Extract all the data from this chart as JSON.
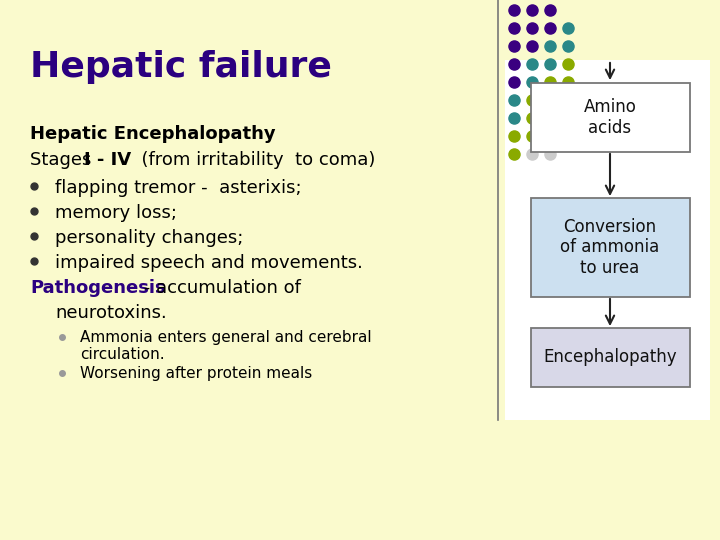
{
  "title": "Hepatic failure",
  "title_color": "#2b0080",
  "title_fontsize": 26,
  "background_color": "#fafacd",
  "text_color": "#000000",
  "subheading": "Hepatic Encephalopathy",
  "bullets": [
    "flapping tremor -  asterixis;",
    "memory loss;",
    "personality changes;",
    "impaired speech and movements."
  ],
  "pathogenesis_label": "Pathogenesis",
  "pathogenesis_rest": " - accumulation of",
  "neurotoxins_line": "neurotoxins.",
  "sub_bullets": [
    "Ammonia enters general and cerebral\ncirculation.",
    "Worsening after protein meals"
  ],
  "diagram_boxes": [
    "Amino\nacids",
    "Conversion\nof ammonia\nto urea",
    "Encephalopathy"
  ],
  "box_fill_amino": "#ffffff",
  "box_fill_conversion": "#cce0f0",
  "box_fill_enceph": "#d8d8e8",
  "box_edge_color": "#777777",
  "arrow_color": "#222222",
  "pathogenesis_color": "#2b0080",
  "line_color": "#777777",
  "dot_colors": [
    [
      "#3a0080",
      "#3a0080",
      "#3a0080"
    ],
    [
      "#3a0080",
      "#3a0080",
      "#3a0080",
      "#2a8888"
    ],
    [
      "#3a0080",
      "#3a0080",
      "#2a8888",
      "#2a8888"
    ],
    [
      "#3a0080",
      "#2a8888",
      "#2a8888",
      "#8aaa00"
    ],
    [
      "#3a0080",
      "#2a8888",
      "#8aaa00",
      "#8aaa00"
    ],
    [
      "#2a8888",
      "#8aaa00",
      "#8aaa00",
      "#cccccc"
    ],
    [
      "#2a8888",
      "#8aaa00",
      "#8aaa00",
      "#cccccc"
    ],
    [
      "#8aaa00",
      "#8aaa00",
      "#cccccc",
      "#cccccc"
    ],
    [
      "#8aaa00",
      "#cccccc",
      "#cccccc",
      ""
    ]
  ]
}
